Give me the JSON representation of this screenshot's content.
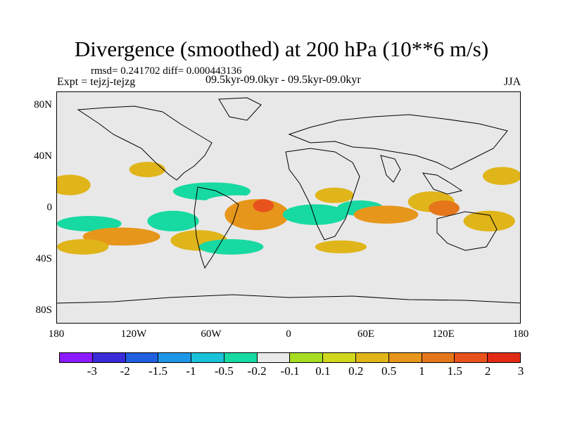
{
  "title": "Divergence (smoothed) at 200 hPa (10**6 m/s)",
  "stats_line": "rmsd= 0.241702 diff= 0.000443136",
  "experiment_line": "Expt = tejzj-tejzg",
  "period_line": "09.5kyr-09.0kyr - 09.5kyr-09.0kyr",
  "season": "JJA",
  "lat_labels": [
    "80N",
    "40N",
    "0",
    "40S",
    "80S"
  ],
  "lon_labels": [
    "180",
    "120W",
    "60W",
    "0",
    "60E",
    "120E",
    "180"
  ],
  "colorbar": {
    "colors": [
      "#8c1aff",
      "#3b2bd9",
      "#1f5fe0",
      "#1e96e8",
      "#19c2d8",
      "#17d9a2",
      "#e9e9e9",
      "#a6dc22",
      "#cfd61c",
      "#e0b51a",
      "#e6961a",
      "#e6761a",
      "#e8521c",
      "#e02a14"
    ],
    "labels": [
      "-3",
      "-2",
      "-1.5",
      "-1",
      "-0.5",
      "-0.2",
      "-0.1",
      "0.1",
      "0.2",
      "0.5",
      "1",
      "1.5",
      "2",
      "3"
    ]
  },
  "field_regions": [
    {
      "lon": -170,
      "lat": 18,
      "rx": 16,
      "ry": 8,
      "value": 0.2
    },
    {
      "lon": -110,
      "lat": 30,
      "rx": 14,
      "ry": 6,
      "value": 0.2
    },
    {
      "lon": -150,
      "lat": 0,
      "rx": 22,
      "ry": 4,
      "value": -0.2
    },
    {
      "lon": -155,
      "lat": -12,
      "rx": 25,
      "ry": 6,
      "value": -0.5
    },
    {
      "lon": -130,
      "lat": -22,
      "rx": 30,
      "ry": 7,
      "value": 0.5
    },
    {
      "lon": -160,
      "lat": -30,
      "rx": 20,
      "ry": 6,
      "value": 0.2
    },
    {
      "lon": -90,
      "lat": -10,
      "rx": 20,
      "ry": 8,
      "value": -0.5
    },
    {
      "lon": -60,
      "lat": 13,
      "rx": 30,
      "ry": 7,
      "value": -0.5
    },
    {
      "lon": -40,
      "lat": 5,
      "rx": 25,
      "ry": 5,
      "value": -0.2
    },
    {
      "lon": -25,
      "lat": -5,
      "rx": 25,
      "ry": 12,
      "value": 0.5
    },
    {
      "lon": -20,
      "lat": 2,
      "rx": 8,
      "ry": 5,
      "value": 1.5
    },
    {
      "lon": -70,
      "lat": -25,
      "rx": 22,
      "ry": 8,
      "value": 0.2
    },
    {
      "lon": -45,
      "lat": -30,
      "rx": 25,
      "ry": 6,
      "value": -0.5
    },
    {
      "lon": 20,
      "lat": -5,
      "rx": 25,
      "ry": 8,
      "value": -0.5
    },
    {
      "lon": 35,
      "lat": 10,
      "rx": 15,
      "ry": 6,
      "value": 0.2
    },
    {
      "lon": 55,
      "lat": 0,
      "rx": 18,
      "ry": 6,
      "value": -0.5
    },
    {
      "lon": 75,
      "lat": -5,
      "rx": 25,
      "ry": 7,
      "value": 0.5
    },
    {
      "lon": 110,
      "lat": 5,
      "rx": 18,
      "ry": 8,
      "value": 0.2
    },
    {
      "lon": 120,
      "lat": 0,
      "rx": 12,
      "ry": 6,
      "value": 1
    },
    {
      "lon": 140,
      "lat": 20,
      "rx": 20,
      "ry": 8,
      "value": -0.2
    },
    {
      "lon": 155,
      "lat": -10,
      "rx": 20,
      "ry": 8,
      "value": 0.2
    },
    {
      "lon": 165,
      "lat": 25,
      "rx": 15,
      "ry": 7,
      "value": 0.2
    },
    {
      "lon": 90,
      "lat": -30,
      "rx": 30,
      "ry": 5,
      "value": -0.2
    },
    {
      "lon": 40,
      "lat": -30,
      "rx": 20,
      "ry": 5,
      "value": 0.2
    }
  ]
}
